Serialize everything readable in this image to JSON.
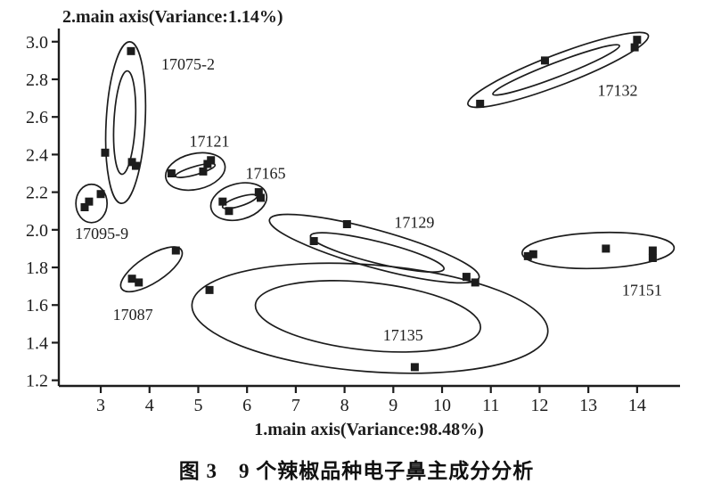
{
  "figure": {
    "caption": "图 3　9 个辣椒品种电子鼻主成分分析"
  },
  "chart_data": {
    "type": "scatter",
    "title": "",
    "xlabel": "1.main axis(Variance:98.48%)",
    "ylabel": "2.main axis(Variance:1.14%)",
    "xlim": [
      2.14,
      14.88
    ],
    "ylim": [
      1.17,
      3.07
    ],
    "grid": false,
    "legend": "none",
    "marker_shape": "filled-square",
    "ink_color": "#1c1c1c",
    "background_color": "#ffffff",
    "x_ticks": [
      {
        "value": 3,
        "label": "3"
      },
      {
        "value": 4,
        "label": "4"
      },
      {
        "value": 5,
        "label": "5"
      },
      {
        "value": 6,
        "label": "6"
      },
      {
        "value": 7,
        "label": "7"
      },
      {
        "value": 8,
        "label": "8"
      },
      {
        "value": 9,
        "label": "9"
      },
      {
        "value": 10,
        "label": "10"
      },
      {
        "value": 11,
        "label": "11"
      },
      {
        "value": 12,
        "label": "12"
      },
      {
        "value": 13,
        "label": "13"
      },
      {
        "value": 14,
        "label": "14"
      }
    ],
    "y_ticks": [
      {
        "value": 1.2,
        "label": "1.2"
      },
      {
        "value": 1.4,
        "label": "1.4"
      },
      {
        "value": 1.6,
        "label": "1.6"
      },
      {
        "value": 1.8,
        "label": "1.8"
      },
      {
        "value": 2.0,
        "label": "2.0"
      },
      {
        "value": 2.2,
        "label": "2.2"
      },
      {
        "value": 2.4,
        "label": "2.4"
      },
      {
        "value": 2.6,
        "label": "2.6"
      },
      {
        "value": 2.8,
        "label": "2.8"
      },
      {
        "value": 3.0,
        "label": "3.0"
      }
    ],
    "groups": [
      {
        "name": "17075-2",
        "label": "17075-2",
        "label_pos": [
          4.79,
          2.88
        ],
        "points": [
          [
            3.62,
            2.95
          ],
          [
            3.09,
            2.41
          ],
          [
            3.64,
            2.36
          ],
          [
            3.72,
            2.34
          ]
        ],
        "ellipses": [
          {
            "cx": 3.51,
            "cy": 2.57,
            "rx": 0.4,
            "ry": 0.43,
            "tilt": 3
          },
          {
            "cx": 3.49,
            "cy": 2.57,
            "rx": 0.22,
            "ry": 0.275,
            "tilt": 3
          }
        ]
      },
      {
        "name": "17121",
        "label": "17121",
        "label_pos": [
          5.23,
          2.47
        ],
        "points": [
          [
            4.45,
            2.3
          ],
          [
            5.1,
            2.31
          ],
          [
            5.19,
            2.35
          ],
          [
            5.26,
            2.37
          ]
        ],
        "ellipses": [
          {
            "cx": 4.94,
            "cy": 2.31,
            "rx": 0.62,
            "ry": 0.095,
            "tilt": -13
          },
          {
            "cx": 4.94,
            "cy": 2.315,
            "rx": 0.42,
            "ry": 0.022,
            "tilt": -16
          }
        ]
      },
      {
        "name": "17165",
        "label": "17165",
        "label_pos": [
          6.38,
          2.3
        ],
        "points": [
          [
            5.5,
            2.15
          ],
          [
            5.63,
            2.1
          ],
          [
            6.24,
            2.2
          ],
          [
            6.28,
            2.17
          ]
        ],
        "ellipses": [
          {
            "cx": 5.83,
            "cy": 2.15,
            "rx": 0.585,
            "ry": 0.095,
            "tilt": -15
          },
          {
            "cx": 5.85,
            "cy": 2.15,
            "rx": 0.37,
            "ry": 0.024,
            "tilt": -18
          }
        ]
      },
      {
        "name": "17095-9",
        "label": "17095-9",
        "label_pos": [
          3.02,
          1.98
        ],
        "points": [
          [
            2.67,
            2.12
          ],
          [
            2.76,
            2.15
          ],
          [
            3.0,
            2.19
          ]
        ],
        "ellipses": [
          {
            "cx": 2.81,
            "cy": 2.14,
            "rx": 0.32,
            "ry": 0.102,
            "tilt": 0
          }
        ]
      },
      {
        "name": "17129",
        "label": "17129",
        "label_pos": [
          9.43,
          2.04
        ],
        "points": [
          [
            7.37,
            1.94
          ],
          [
            8.05,
            2.03
          ],
          [
            10.5,
            1.75
          ],
          [
            10.68,
            1.72
          ]
        ],
        "ellipses": [
          {
            "cx": 8.61,
            "cy": 1.9,
            "rx": 2.23,
            "ry": 0.1,
            "tilt": 15.5
          },
          {
            "cx": 8.67,
            "cy": 1.88,
            "rx": 1.41,
            "ry": 0.057,
            "tilt": 14
          }
        ]
      },
      {
        "name": "17087",
        "label": "17087",
        "label_pos": [
          3.66,
          1.55
        ],
        "points": [
          [
            3.64,
            1.74
          ],
          [
            3.78,
            1.72
          ],
          [
            4.54,
            1.89
          ]
        ],
        "ellipses": [
          {
            "cx": 4.04,
            "cy": 1.79,
            "rx": 0.73,
            "ry": 0.071,
            "tilt": -33
          }
        ]
      },
      {
        "name": "17135",
        "label": "17135",
        "label_pos": [
          9.2,
          1.44
        ],
        "points": [
          [
            5.23,
            1.68
          ],
          [
            9.44,
            1.27
          ]
        ],
        "ellipses": [
          {
            "cx": 8.52,
            "cy": 1.53,
            "rx": 3.66,
            "ry": 0.284,
            "tilt": 4.5
          },
          {
            "cx": 8.48,
            "cy": 1.54,
            "rx": 2.32,
            "ry": 0.18,
            "tilt": 6
          }
        ]
      },
      {
        "name": "17151",
        "label": "17151",
        "label_pos": [
          14.1,
          1.68
        ],
        "points": [
          [
            11.76,
            1.86
          ],
          [
            11.87,
            1.87
          ],
          [
            13.36,
            1.9
          ],
          [
            14.32,
            1.89
          ],
          [
            14.32,
            1.85
          ]
        ],
        "ellipses": [
          {
            "cx": 13.2,
            "cy": 1.89,
            "rx": 1.56,
            "ry": 0.095,
            "tilt": -2
          }
        ]
      },
      {
        "name": "17132",
        "label": "17132",
        "label_pos": [
          13.6,
          2.74
        ],
        "points": [
          [
            10.78,
            2.67
          ],
          [
            12.11,
            2.9
          ],
          [
            13.95,
            2.97
          ],
          [
            14.0,
            3.01
          ]
        ],
        "ellipses": [
          {
            "cx": 12.38,
            "cy": 2.85,
            "rx": 1.98,
            "ry": 0.081,
            "tilt": -21
          },
          {
            "cx": 12.34,
            "cy": 2.85,
            "rx": 1.39,
            "ry": 0.038,
            "tilt": -21
          }
        ]
      }
    ]
  }
}
